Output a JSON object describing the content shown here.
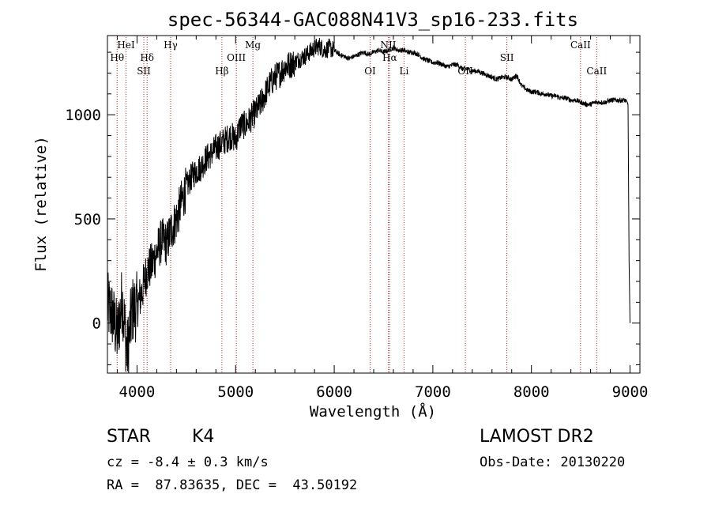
{
  "chart_data": {
    "type": "line",
    "title": "spec-56344-GAC088N41V3_sp16-233.fits",
    "xlabel": "Wavelength (Å)",
    "ylabel": "Flux (relative)",
    "xlim": [
      3700,
      9100
    ],
    "ylim": [
      -240,
      1380
    ],
    "xticks": [
      4000,
      5000,
      6000,
      7000,
      8000,
      9000
    ],
    "yticks": [
      0,
      500,
      1000
    ],
    "grid": false,
    "series": [
      {
        "x": [
          3700,
          3750,
          3800,
          3850,
          3900,
          3950,
          4000,
          4050,
          4100,
          4150,
          4200,
          4250,
          4300,
          4350,
          4400,
          4450,
          4500,
          4550,
          4600,
          4650,
          4700,
          4750,
          4800,
          4850,
          4900,
          4950,
          5000,
          5050,
          5100,
          5150,
          5200,
          5250,
          5300,
          5350,
          5400,
          5450,
          5500,
          5550,
          5600,
          5650,
          5700,
          5750,
          5800,
          5850,
          5900,
          5950,
          6000,
          6050,
          6100,
          6150,
          6200,
          6250,
          6300,
          6350,
          6400,
          6450,
          6500,
          6550,
          6600,
          6650,
          6700,
          6750,
          6800,
          6850,
          6900,
          6950,
          7000,
          7050,
          7100,
          7150,
          7200,
          7250,
          7300,
          7350,
          7400,
          7450,
          7500,
          7550,
          7600,
          7650,
          7700,
          7750,
          7800,
          7850,
          7900,
          7950,
          8000,
          8050,
          8100,
          8150,
          8200,
          8250,
          8300,
          8350,
          8400,
          8450,
          8500,
          8550,
          8600,
          8650,
          8700,
          8750,
          8800,
          8850,
          8900,
          8950,
          8980,
          8990,
          9000
        ],
        "y": [
          80,
          40,
          -60,
          120,
          -150,
          60,
          80,
          150,
          250,
          280,
          340,
          400,
          380,
          450,
          500,
          580,
          650,
          700,
          730,
          750,
          790,
          810,
          840,
          860,
          880,
          900,
          880,
          950,
          950,
          980,
          1010,
          1050,
          1100,
          1150,
          1180,
          1200,
          1230,
          1240,
          1250,
          1270,
          1280,
          1300,
          1320,
          1330,
          1310,
          1320,
          1310,
          1290,
          1280,
          1270,
          1280,
          1290,
          1300,
          1290,
          1300,
          1310,
          1300,
          1310,
          1320,
          1310,
          1310,
          1300,
          1300,
          1290,
          1270,
          1260,
          1250,
          1250,
          1240,
          1230,
          1240,
          1240,
          1220,
          1220,
          1210,
          1210,
          1200,
          1190,
          1180,
          1170,
          1180,
          1180,
          1170,
          1190,
          1140,
          1120,
          1110,
          1110,
          1100,
          1100,
          1090,
          1090,
          1080,
          1080,
          1070,
          1070,
          1060,
          1050,
          1050,
          1060,
          1060,
          1060,
          1070,
          1070,
          1070,
          1070,
          1050,
          300,
          0
        ]
      }
    ],
    "line_ids": [
      {
        "label": "Hθ",
        "wl": 3798,
        "row": 1
      },
      {
        "label": "HeI",
        "wl": 3889,
        "row": 0
      },
      {
        "label": "Hδ",
        "wl": 4102,
        "row": 1
      },
      {
        "label": "SII",
        "wl": 4069,
        "row": 2
      },
      {
        "label": "Hγ",
        "wl": 4341,
        "row": 0
      },
      {
        "label": "Hβ",
        "wl": 4861,
        "row": 2
      },
      {
        "label": "OIII",
        "wl": 5007,
        "row": 1
      },
      {
        "label": "Mg",
        "wl": 5175,
        "row": 0
      },
      {
        "label": "OI",
        "wl": 6364,
        "row": 2
      },
      {
        "label": "NII",
        "wl": 6548,
        "row": 0
      },
      {
        "label": "Hα",
        "wl": 6563,
        "row": 1
      },
      {
        "label": "Li",
        "wl": 6708,
        "row": 2
      },
      {
        "label": "OII",
        "wl": 7330,
        "row": 2
      },
      {
        "label": "SII",
        "wl": 7751,
        "row": 1
      },
      {
        "label": "CaII",
        "wl": 8498,
        "row": 0
      },
      {
        "label": "CaII",
        "wl": 8662,
        "row": 2
      }
    ]
  },
  "info": {
    "class_label": "STAR",
    "subclass": "K4",
    "survey": "LAMOST DR2",
    "cz": "cz = -8.4 ± 0.3 km/s",
    "obs_date": "Obs-Date: 20130220",
    "radec": "RA =  87.83635, DEC =  43.50192"
  }
}
